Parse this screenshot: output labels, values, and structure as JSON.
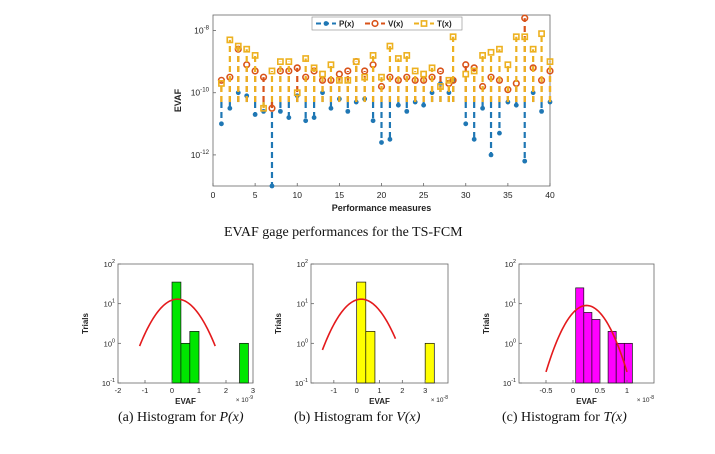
{
  "main_caption": "EVAF gage performances for the TS-FCM",
  "subcaptions": [
    {
      "prefix": "(a) Histogram for",
      "func": "P(x)"
    },
    {
      "prefix": "(b) Histogram for",
      "func": "V(x)"
    },
    {
      "prefix": "(c) Histogram for",
      "func": "T(x)"
    }
  ],
  "colors": {
    "P": "#1f77b4",
    "V": "#d95319",
    "T": "#edb120",
    "fit": "#e41a1c",
    "hist_a": "#00e600",
    "hist_b": "#ffff00",
    "hist_c": "#ff00ff"
  },
  "chart_data": [
    {
      "type": "line",
      "title": "",
      "xlabel": "Performance measures",
      "ylabel": "EVAF",
      "xlim": [
        0,
        40
      ],
      "ylim_log10": [
        -13,
        -7.5
      ],
      "xticks": [
        0,
        5,
        10,
        15,
        20,
        25,
        30,
        35,
        40
      ],
      "yticks": [
        {
          "value": -8,
          "label": "10^-8"
        },
        {
          "value": -10,
          "label": "10^-10"
        },
        {
          "value": -12,
          "label": "10^-12"
        }
      ],
      "legend": [
        "P(x)",
        "V(x)",
        "T(x)"
      ],
      "legend_position": "top-right",
      "x": [
        1,
        2,
        3,
        4,
        5,
        6,
        7,
        8,
        9,
        10,
        11,
        12,
        13,
        14,
        15,
        16,
        17,
        18,
        19,
        20,
        21,
        22,
        23,
        24,
        25,
        26,
        27,
        28,
        28.5,
        30,
        31,
        32,
        33,
        34,
        35,
        36,
        37,
        38,
        39,
        40
      ],
      "series": [
        {
          "name": "P(x)",
          "log10": [
            -11.0,
            -10.5,
            -10.0,
            -10.1,
            -10.7,
            -10.6,
            -13.0,
            -10.6,
            -10.8,
            -10.1,
            -10.9,
            -10.8,
            -10.0,
            -10.5,
            -10.2,
            -10.6,
            -10.3,
            -10.2,
            -10.9,
            -11.6,
            -11.5,
            -10.4,
            -10.6,
            -10.3,
            -10.4,
            -10.0,
            -9.7,
            -10.0,
            -9.6,
            -11.0,
            -11.5,
            -10.5,
            -12.0,
            -11.3,
            -10.3,
            -10.4,
            -12.2,
            -10.0,
            -10.6,
            -10.3
          ]
        },
        {
          "name": "V(x)",
          "log10": [
            -9.6,
            -9.5,
            -8.6,
            -9.1,
            -9.3,
            -9.5,
            -10.5,
            -9.3,
            -9.3,
            -9.2,
            -9.5,
            -9.3,
            -9.6,
            -9.6,
            -9.4,
            -9.3,
            -9.0,
            -9.3,
            -9.1,
            -9.8,
            -9.5,
            -9.6,
            -9.5,
            -9.6,
            -9.6,
            -9.5,
            -9.3,
            -9.7,
            -9.6,
            -9.1,
            -9.2,
            -9.8,
            -9.5,
            -9.6,
            -9.9,
            -9.7,
            -7.6,
            -9.2,
            -9.6,
            -9.3
          ]
        },
        {
          "name": "T(x)",
          "log10": [
            -9.7,
            -8.3,
            -8.5,
            -8.6,
            -8.8,
            -10.5,
            -9.3,
            -9.0,
            -9.0,
            -10.0,
            -8.9,
            -9.2,
            -9.4,
            -9.1,
            -9.6,
            -9.6,
            -9.0,
            -9.5,
            -8.8,
            -9.5,
            -8.5,
            -8.9,
            -8.8,
            -9.3,
            -9.4,
            -9.2,
            -9.8,
            -9.6,
            -8.2,
            -9.4,
            -9.3,
            -8.8,
            -8.7,
            -8.6,
            -9.1,
            -8.2,
            -8.2,
            -8.6,
            -8.1,
            -9.0
          ]
        }
      ]
    },
    {
      "type": "bar",
      "title": "",
      "xlabel": "EVAF",
      "ylabel": "Trials",
      "scale_label": "× 10",
      "scale_exponent": "-9",
      "xlim": [
        -2,
        3
      ],
      "xticks": [
        -2,
        -1,
        0,
        1,
        2,
        3
      ],
      "ylim_log10": [
        -1,
        2
      ],
      "yticks": [
        {
          "value": 2,
          "label": "10^2"
        },
        {
          "value": 1,
          "label": "10^1"
        },
        {
          "value": 0,
          "label": "10^0"
        },
        {
          "value": -1,
          "label": "10^-1"
        }
      ],
      "bins": [
        {
          "from": 0.0,
          "to": 0.33,
          "count": 35
        },
        {
          "from": 0.33,
          "to": 0.66,
          "count": 1
        },
        {
          "from": 0.66,
          "to": 1.0,
          "count": 2
        },
        {
          "from": 2.5,
          "to": 2.83,
          "count": 1
        }
      ],
      "fit": {
        "peak": 13,
        "center": 0.2,
        "sigma": 0.6,
        "from": -1.2,
        "to": 1.6
      }
    },
    {
      "type": "bar",
      "title": "",
      "xlabel": "EVAF",
      "ylabel": "Trials",
      "scale_label": "× 10",
      "scale_exponent": "-8",
      "xlim": [
        -2,
        4
      ],
      "xticks": [
        -1,
        0,
        1,
        2,
        3
      ],
      "ylim_log10": [
        -1,
        2
      ],
      "yticks": [
        {
          "value": 2,
          "label": "10^2"
        },
        {
          "value": 1,
          "label": "10^1"
        },
        {
          "value": 0,
          "label": "10^0"
        },
        {
          "value": -1,
          "label": "10^-1"
        }
      ],
      "bins": [
        {
          "from": 0.0,
          "to": 0.4,
          "count": 35
        },
        {
          "from": 0.4,
          "to": 0.8,
          "count": 2
        },
        {
          "from": 3.0,
          "to": 3.4,
          "count": 1
        }
      ],
      "fit": {
        "peak": 13,
        "center": 0.2,
        "sigma": 0.7,
        "from": -1.5,
        "to": 1.7
      }
    },
    {
      "type": "bar",
      "title": "",
      "xlabel": "EVAF",
      "ylabel": "Trials",
      "scale_label": "× 10",
      "scale_exponent": "-8",
      "xlim": [
        -1,
        1.5
      ],
      "xticks": [
        -0.5,
        0,
        0.5,
        1
      ],
      "ylim_log10": [
        -1,
        2
      ],
      "yticks": [
        {
          "value": 2,
          "label": "10^2"
        },
        {
          "value": 1,
          "label": "10^1"
        },
        {
          "value": 0,
          "label": "10^0"
        },
        {
          "value": -1,
          "label": "10^-1"
        }
      ],
      "bins": [
        {
          "from": 0.05,
          "to": 0.2,
          "count": 25
        },
        {
          "from": 0.2,
          "to": 0.35,
          "count": 6
        },
        {
          "from": 0.35,
          "to": 0.5,
          "count": 4
        },
        {
          "from": 0.65,
          "to": 0.8,
          "count": 2
        },
        {
          "from": 0.8,
          "to": 0.95,
          "count": 1
        },
        {
          "from": 0.95,
          "to": 1.1,
          "count": 1
        }
      ],
      "fit": {
        "peak": 9,
        "center": 0.25,
        "sigma": 0.27,
        "from": -0.5,
        "to": 1.0
      }
    }
  ]
}
